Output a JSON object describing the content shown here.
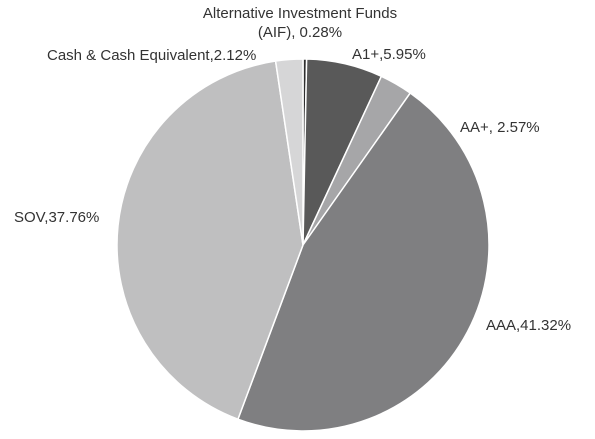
{
  "chart_data": {
    "type": "pie",
    "values": [
      0.28,
      5.95,
      2.57,
      41.32,
      37.76,
      2.12
    ],
    "value_labels": [
      [
        "Alternative Investment Funds",
        "(AIF), 0.28%"
      ],
      "A1+,5.95%",
      "AA+, 2.57%",
      "AAA,41.32%",
      "SOV,37.76%",
      "Cash & Cash Equivalent,2.12%"
    ],
    "colors": [
      "#2e2e2e",
      "#595959",
      "#a6a6a8",
      "#7f7f81",
      "#bfbfc0",
      "#d6d6d7"
    ]
  }
}
